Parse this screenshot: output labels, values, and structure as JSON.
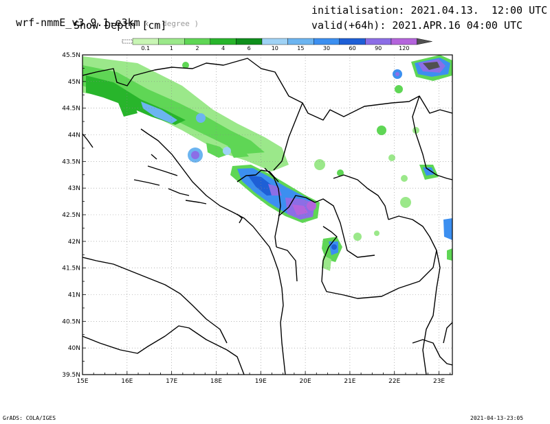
{
  "header": {
    "model": "wrf-nmmE_v3.9.1-e3km",
    "projection_note": "x . degree )",
    "field": "Snow Depth [cm]",
    "init": "initialisation: 2021.04.13.  12:00 UTC",
    "valid": "valid(+64h): 2021.APR.16 04:00 UTC"
  },
  "colorbar": {
    "labels": [
      "0.1",
      "1",
      "2",
      "4",
      "6",
      "10",
      "15",
      "30",
      "60",
      "90",
      "120"
    ],
    "colors": [
      "#c8f5b4",
      "#9be88a",
      "#5fd655",
      "#28b52b",
      "#0f8f1c",
      "#9fd2f5",
      "#6cb4f0",
      "#3c8ff0",
      "#1e5fd6",
      "#8c6ee6",
      "#b464dc",
      "#505050"
    ]
  },
  "axes": {
    "lon_labels": [
      "15E",
      "16E",
      "17E",
      "18E",
      "19E",
      "20E",
      "21E",
      "22E",
      "23E"
    ],
    "lat_labels": [
      "45.5N",
      "45N",
      "44.5N",
      "44N",
      "43.5N",
      "43N",
      "42.5N",
      "42N",
      "41.5N",
      "41N",
      "40.5N",
      "40N",
      "39.5N"
    ]
  },
  "footer": {
    "left": "GrADS: COLA/IGES",
    "right": "2021-04-13-23:05"
  }
}
